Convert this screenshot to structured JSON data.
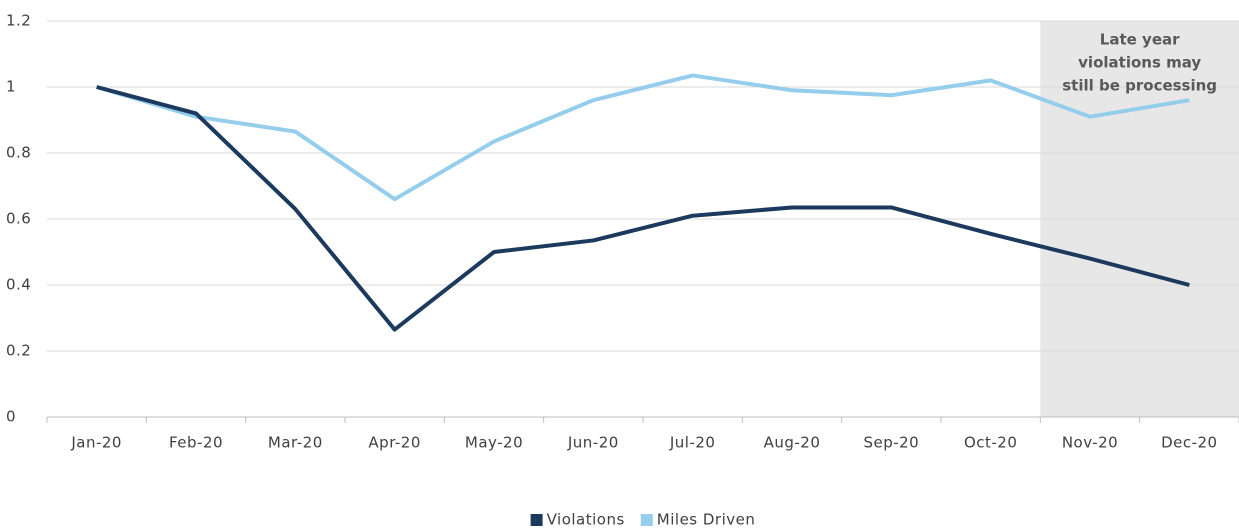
{
  "chart_data": {
    "type": "line",
    "categories": [
      "Jan-20",
      "Feb-20",
      "Mar-20",
      "Apr-20",
      "May-20",
      "Jun-20",
      "Jul-20",
      "Aug-20",
      "Sep-20",
      "Oct-20",
      "Nov-20",
      "Dec-20"
    ],
    "series": [
      {
        "name": "Violations",
        "color": "#1c3a5e",
        "values": [
          1.0,
          0.92,
          0.63,
          0.265,
          0.5,
          0.535,
          0.61,
          0.635,
          0.635,
          0.555,
          0.48,
          0.4
        ]
      },
      {
        "name": "Miles Driven",
        "color": "#95cdec",
        "values": [
          1.0,
          0.91,
          0.865,
          0.66,
          0.835,
          0.96,
          1.035,
          0.99,
          0.975,
          1.02,
          0.91,
          0.96
        ]
      }
    ],
    "ylim": [
      0,
      1.2
    ],
    "yticks": [
      0,
      0.2,
      0.4,
      0.6,
      0.8,
      1,
      1.2
    ],
    "grid": true,
    "shaded_range": [
      "Nov-20",
      "Dec-20"
    ],
    "shade_color": "#e7e7e7",
    "annotation": [
      "Late year",
      "violations may",
      "still be processing"
    ],
    "legend": "bottom"
  }
}
